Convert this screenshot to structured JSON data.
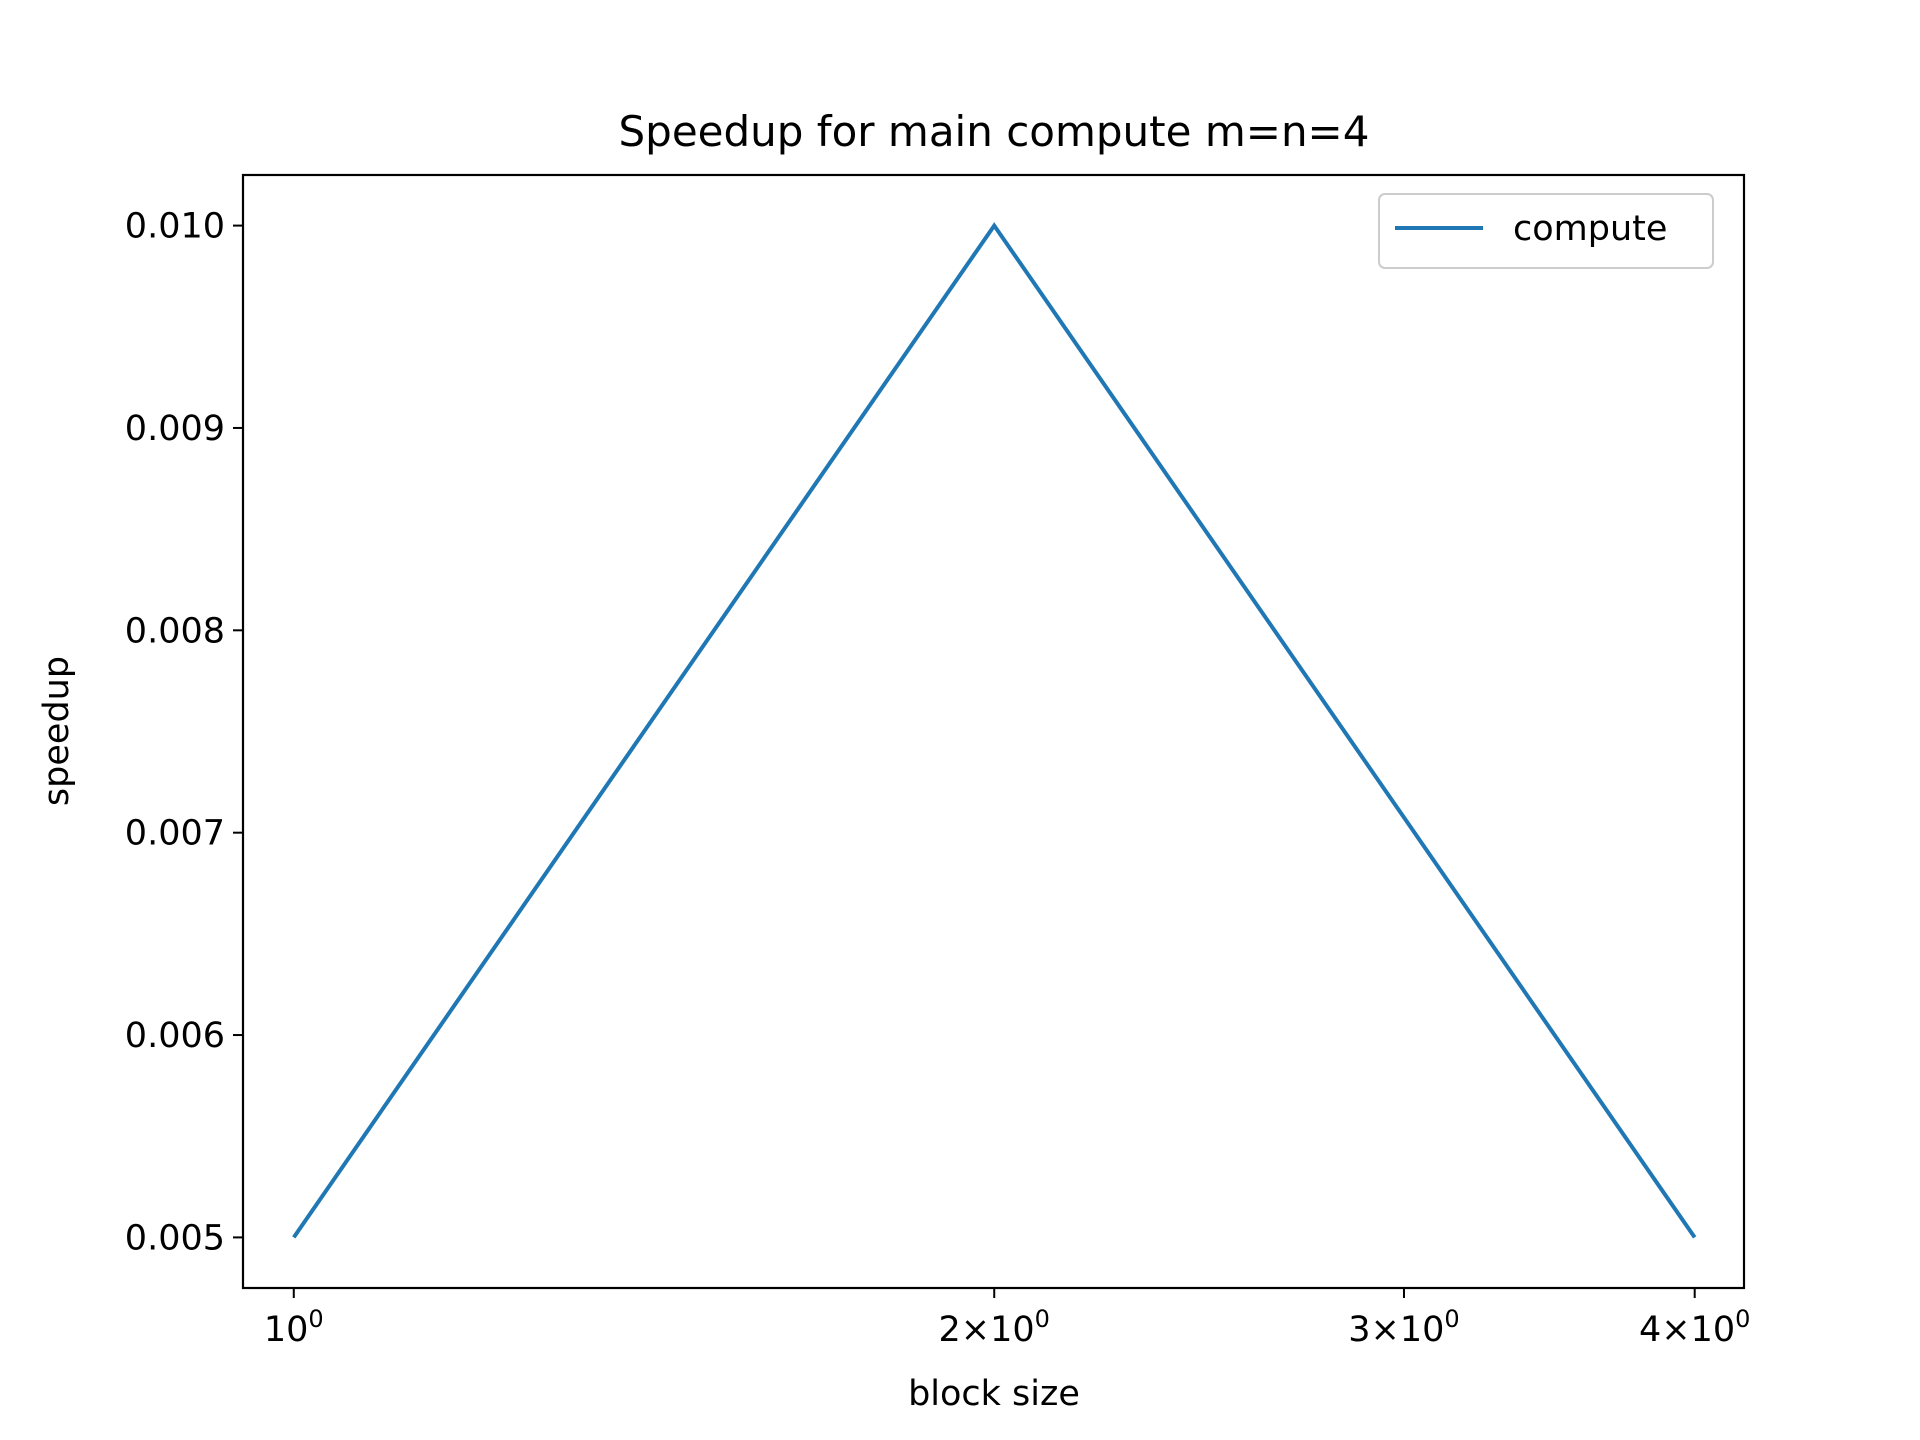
{
  "chart_data": {
    "type": "line",
    "title": "Speedup for main compute m=n=4",
    "xlabel": "block size",
    "ylabel": "speedup",
    "x_scale": "log",
    "xlim": [
      0.951,
      4.2
    ],
    "ylim": [
      0.00475,
      0.01025
    ],
    "x_ticks": [
      {
        "value": 1,
        "base": "10",
        "exp": "0"
      },
      {
        "value": 2,
        "base": "2×10",
        "exp": "0"
      },
      {
        "value": 3,
        "base": "3×10",
        "exp": "0"
      },
      {
        "value": 4,
        "base": "4×10",
        "exp": "0"
      }
    ],
    "y_ticks": [
      {
        "value": 0.005,
        "label": "0.005"
      },
      {
        "value": 0.006,
        "label": "0.006"
      },
      {
        "value": 0.007,
        "label": "0.007"
      },
      {
        "value": 0.008,
        "label": "0.008"
      },
      {
        "value": 0.009,
        "label": "0.009"
      },
      {
        "value": 0.01,
        "label": "0.010"
      }
    ],
    "series": [
      {
        "name": "compute",
        "color": "#1f77b4",
        "x": [
          1,
          2,
          4
        ],
        "y": [
          0.005,
          0.01,
          0.005
        ]
      }
    ],
    "legend_position": "top-right",
    "grid": false
  }
}
